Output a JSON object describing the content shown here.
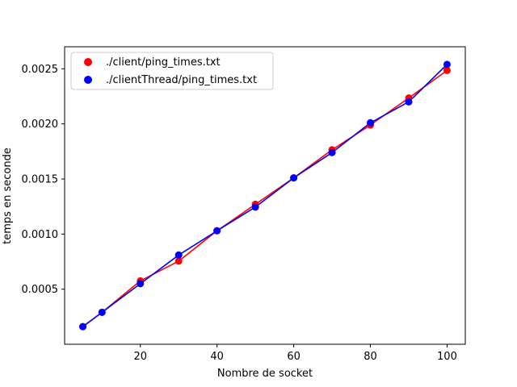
{
  "chart_data": {
    "type": "scatter",
    "title": "",
    "xlabel": "Nombre de socket",
    "ylabel": "temps en seconde",
    "xlim": [
      0.25,
      104.75
    ],
    "ylim": [
      0.0,
      0.0027
    ],
    "xticks": [
      20,
      40,
      60,
      80,
      100
    ],
    "yticks": [
      0.0005,
      0.001,
      0.0015,
      0.002,
      0.0025
    ],
    "ytick_labels": [
      "0.0005",
      "0.0010",
      "0.0015",
      "0.0020",
      "0.0025"
    ],
    "grid": false,
    "legend_position": "top-left",
    "series": [
      {
        "name": "./client/ping_times.txt",
        "color": "#ff0000",
        "x": [
          5,
          10,
          20,
          30,
          40,
          50,
          60,
          70,
          80,
          90,
          100
        ],
        "y": [
          0.00016,
          0.00029,
          0.000575,
          0.000755,
          0.00103,
          0.00127,
          0.00151,
          0.001765,
          0.00199,
          0.002235,
          0.002485
        ]
      },
      {
        "name": "./clientThread/ping_times.txt",
        "color": "#0000ff",
        "x": [
          5,
          10,
          20,
          30,
          40,
          50,
          60,
          70,
          80,
          90,
          100
        ],
        "y": [
          0.00016,
          0.00029,
          0.00055,
          0.00081,
          0.00103,
          0.001245,
          0.00151,
          0.00174,
          0.00201,
          0.0022,
          0.00254
        ]
      }
    ]
  }
}
